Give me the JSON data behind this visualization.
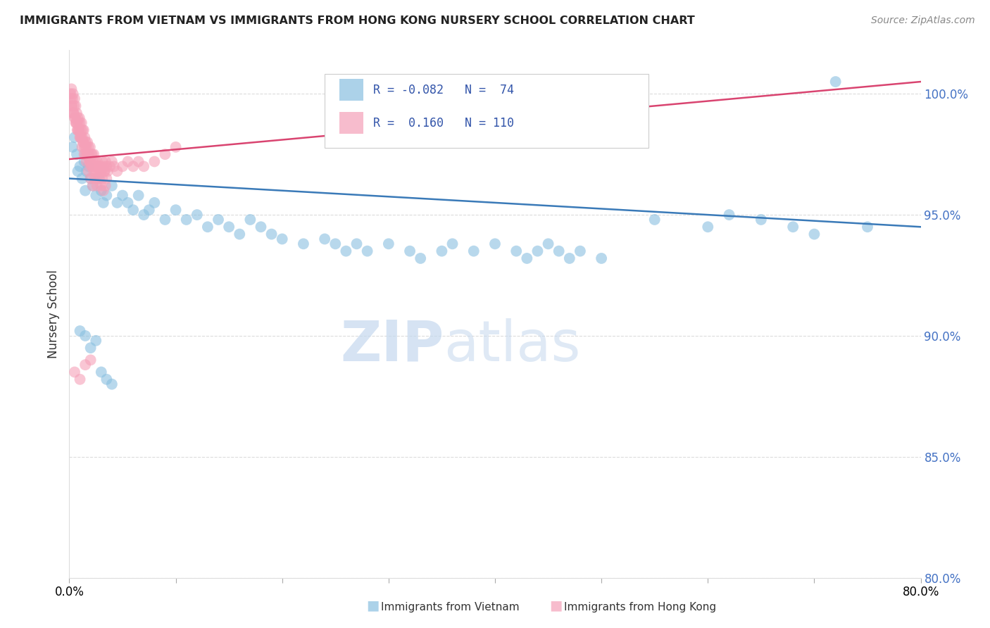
{
  "title": "IMMIGRANTS FROM VIETNAM VS IMMIGRANTS FROM HONG KONG NURSERY SCHOOL CORRELATION CHART",
  "source": "Source: ZipAtlas.com",
  "ylabel": "Nursery School",
  "y_ticks": [
    80.0,
    85.0,
    90.0,
    95.0,
    100.0
  ],
  "x_min": 0.0,
  "x_max": 80.0,
  "y_min": 80.0,
  "y_max": 101.8,
  "blue_R": -0.082,
  "blue_N": 74,
  "pink_R": 0.16,
  "pink_N": 110,
  "blue_color": "#89bfe0",
  "pink_color": "#f5a0b8",
  "blue_line_color": "#3a7ab8",
  "pink_line_color": "#d94470",
  "legend_label_blue": "Immigrants from Vietnam",
  "legend_label_pink": "Immigrants from Hong Kong",
  "watermark_zip": "ZIP",
  "watermark_atlas": "atlas",
  "blue_scatter_x": [
    0.3,
    0.5,
    0.7,
    0.8,
    1.0,
    1.2,
    1.4,
    1.5,
    1.6,
    1.8,
    2.0,
    2.2,
    2.5,
    2.8,
    3.0,
    3.2,
    3.5,
    4.0,
    4.5,
    5.0,
    5.5,
    6.0,
    6.5,
    7.0,
    7.5,
    8.0,
    9.0,
    10.0,
    11.0,
    12.0,
    13.0,
    14.0,
    15.0,
    16.0,
    17.0,
    18.0,
    19.0,
    20.0,
    22.0,
    24.0,
    25.0,
    26.0,
    27.0,
    28.0,
    30.0,
    32.0,
    33.0,
    35.0,
    36.0,
    38.0,
    40.0,
    42.0,
    43.0,
    44.0,
    45.0,
    46.0,
    47.0,
    48.0,
    50.0,
    55.0,
    60.0,
    62.0,
    65.0,
    68.0,
    70.0,
    72.0,
    75.0,
    1.0,
    1.5,
    2.0,
    2.5,
    3.0,
    3.5,
    4.0
  ],
  "blue_scatter_y": [
    97.8,
    98.2,
    97.5,
    96.8,
    97.0,
    96.5,
    97.2,
    96.0,
    96.8,
    97.0,
    96.5,
    96.2,
    95.8,
    96.5,
    96.0,
    95.5,
    95.8,
    96.2,
    95.5,
    95.8,
    95.5,
    95.2,
    95.8,
    95.0,
    95.2,
    95.5,
    94.8,
    95.2,
    94.8,
    95.0,
    94.5,
    94.8,
    94.5,
    94.2,
    94.8,
    94.5,
    94.2,
    94.0,
    93.8,
    94.0,
    93.8,
    93.5,
    93.8,
    93.5,
    93.8,
    93.5,
    93.2,
    93.5,
    93.8,
    93.5,
    93.8,
    93.5,
    93.2,
    93.5,
    93.8,
    93.5,
    93.2,
    93.5,
    93.2,
    94.8,
    94.5,
    95.0,
    94.8,
    94.5,
    94.2,
    100.5,
    94.5,
    90.2,
    90.0,
    89.5,
    89.8,
    88.5,
    88.2,
    88.0
  ],
  "pink_scatter_x": [
    0.1,
    0.15,
    0.2,
    0.25,
    0.3,
    0.35,
    0.4,
    0.45,
    0.5,
    0.55,
    0.6,
    0.65,
    0.7,
    0.75,
    0.8,
    0.85,
    0.9,
    0.95,
    1.0,
    1.05,
    1.1,
    1.15,
    1.2,
    1.25,
    1.3,
    1.35,
    1.4,
    1.45,
    1.5,
    1.55,
    1.6,
    1.65,
    1.7,
    1.75,
    1.8,
    1.85,
    1.9,
    1.95,
    2.0,
    2.05,
    2.1,
    2.15,
    2.2,
    2.25,
    2.3,
    2.35,
    2.4,
    2.45,
    2.5,
    2.6,
    2.7,
    2.8,
    2.9,
    3.0,
    3.1,
    3.2,
    3.3,
    3.4,
    3.5,
    3.6,
    3.8,
    4.0,
    4.2,
    4.5,
    5.0,
    5.5,
    6.0,
    6.5,
    7.0,
    8.0,
    9.0,
    10.0,
    0.3,
    0.5,
    0.7,
    0.9,
    1.1,
    1.3,
    1.5,
    1.7,
    1.9,
    2.1,
    2.3,
    2.5,
    2.7,
    2.9,
    3.1,
    3.3,
    3.5,
    0.2,
    0.4,
    0.6,
    0.8,
    1.0,
    1.2,
    1.4,
    1.6,
    1.8,
    2.0,
    2.2,
    2.4,
    2.6,
    2.8,
    3.0,
    3.2,
    3.4,
    0.5,
    1.0,
    1.5,
    2.0
  ],
  "pink_scatter_y": [
    100.0,
    99.8,
    100.2,
    99.5,
    99.8,
    100.0,
    99.2,
    99.5,
    99.8,
    99.0,
    99.5,
    98.8,
    99.2,
    98.5,
    99.0,
    98.8,
    98.5,
    99.0,
    98.8,
    98.2,
    98.5,
    98.8,
    98.2,
    98.5,
    98.0,
    98.5,
    97.8,
    98.2,
    97.5,
    98.0,
    97.8,
    97.5,
    98.0,
    97.5,
    97.8,
    97.5,
    97.2,
    97.8,
    97.2,
    97.5,
    97.0,
    97.5,
    97.2,
    97.0,
    97.5,
    97.0,
    97.2,
    97.0,
    96.8,
    97.2,
    97.0,
    96.8,
    97.0,
    96.8,
    97.2,
    97.0,
    96.8,
    97.2,
    97.0,
    96.8,
    97.0,
    97.2,
    97.0,
    96.8,
    97.0,
    97.2,
    97.0,
    97.2,
    97.0,
    97.2,
    97.5,
    97.8,
    99.2,
    99.0,
    98.8,
    98.5,
    98.2,
    98.0,
    97.8,
    97.5,
    97.2,
    97.0,
    96.8,
    96.5,
    97.0,
    96.8,
    96.5,
    96.8,
    96.5,
    99.5,
    99.2,
    98.8,
    98.5,
    98.2,
    97.8,
    97.5,
    97.2,
    96.8,
    96.5,
    96.2,
    96.5,
    96.2,
    96.5,
    96.2,
    96.0,
    96.2,
    88.5,
    88.2,
    88.8,
    89.0
  ]
}
